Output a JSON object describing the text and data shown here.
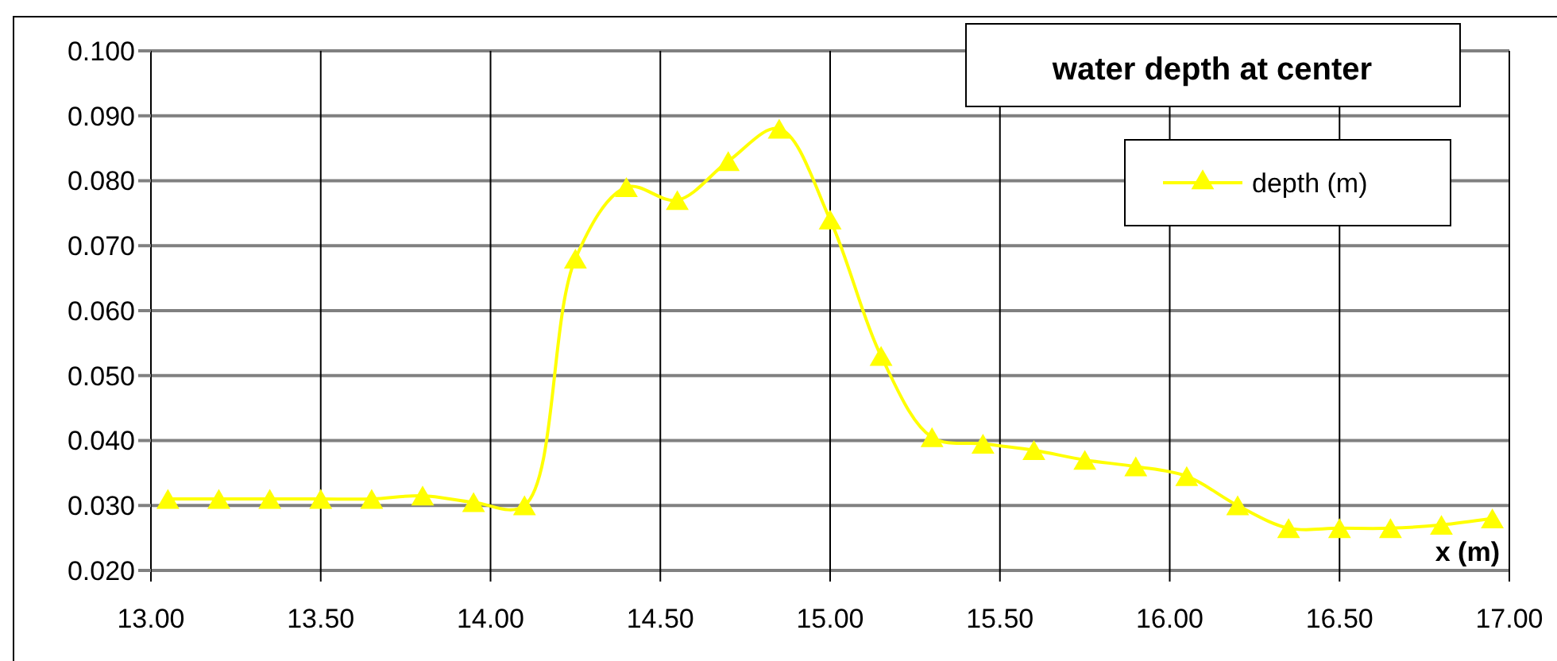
{
  "chart_data": {
    "type": "line",
    "title": "water depth at center",
    "xlabel": "x (m)",
    "x": [
      13.05,
      13.2,
      13.35,
      13.5,
      13.65,
      13.8,
      13.95,
      14.1,
      14.25,
      14.4,
      14.55,
      14.7,
      14.85,
      15.0,
      15.15,
      15.3,
      15.45,
      15.6,
      15.75,
      15.9,
      16.05,
      16.2,
      16.35,
      16.5,
      16.65,
      16.8,
      16.95
    ],
    "series": [
      {
        "name": "depth (m)",
        "color": "#ffff00",
        "values": [
          0.031,
          0.031,
          0.031,
          0.031,
          0.031,
          0.0315,
          0.0305,
          0.03,
          0.068,
          0.079,
          0.077,
          0.083,
          0.088,
          0.074,
          0.053,
          0.0405,
          0.0395,
          0.0385,
          0.037,
          0.036,
          0.0345,
          0.03,
          0.0265,
          0.0265,
          0.0265,
          0.027,
          0.028
        ]
      }
    ],
    "xlim": [
      13,
      17
    ],
    "xticks": [
      {
        "value": 13,
        "label": "13.00"
      },
      {
        "value": 13.5,
        "label": "13.50"
      },
      {
        "value": 14,
        "label": "14.00"
      },
      {
        "value": 14.5,
        "label": "14.50"
      },
      {
        "value": 15,
        "label": "15.00"
      },
      {
        "value": 15.5,
        "label": "15.50"
      },
      {
        "value": 16,
        "label": "16.00"
      },
      {
        "value": 16.5,
        "label": "16.50"
      },
      {
        "value": 17,
        "label": "17.00"
      }
    ],
    "ylim": [
      0.02,
      0.1
    ],
    "yticks": [
      {
        "value": 0.02,
        "label": "0.020"
      },
      {
        "value": 0.03,
        "label": "0.030"
      },
      {
        "value": 0.04,
        "label": "0.040"
      },
      {
        "value": 0.05,
        "label": "0.050"
      },
      {
        "value": 0.06,
        "label": "0.060"
      },
      {
        "value": 0.07,
        "label": "0.070"
      },
      {
        "value": 0.08,
        "label": "0.080"
      },
      {
        "value": 0.09,
        "label": "0.090"
      },
      {
        "value": 0.1,
        "label": "0.100"
      }
    ],
    "grid": true,
    "legend": "top right",
    "marker": "triangle",
    "line_style": "solid"
  }
}
